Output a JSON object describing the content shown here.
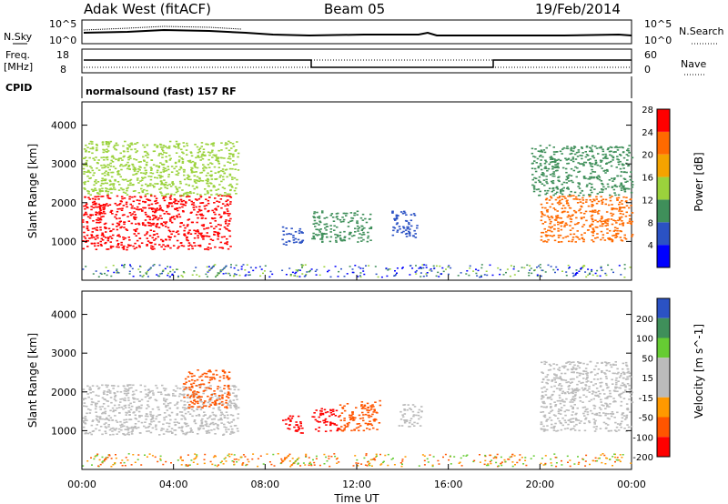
{
  "header": {
    "station": "Adak West (fitACF)",
    "beam": "Beam 05",
    "date": "19/Feb/2014"
  },
  "strip_labels": {
    "nsky": "N.Sky",
    "nsky_top": "10^5",
    "nsky_bottom": "10^0",
    "nsearch": "N.Search",
    "nsearch_top": "10^5",
    "nsearch_bottom": "10^0",
    "freq": "Freq.",
    "freq_unit": "[MHz]",
    "freq_top": "18",
    "freq_bottom": "8",
    "nave": "Nave",
    "nave_top": "60",
    "nave_bottom": "0",
    "cpid": "CPID",
    "cpid_text": "normalsound (fast) 157 RF"
  },
  "time_axis": {
    "label": "Time UT",
    "ticks": [
      "00:00",
      "04:00",
      "08:00",
      "12:00",
      "16:00",
      "20:00",
      "00:00"
    ]
  },
  "chart_data": [
    {
      "type": "heatmap",
      "panel": "power",
      "ylabel": "Slant Range [km]",
      "ylim": [
        0,
        4600
      ],
      "yticks": [
        1000,
        2000,
        3000,
        4000
      ],
      "xlim_hours": [
        0,
        24
      ],
      "colorbar": {
        "label": "Power [dB]",
        "ticks": [
          "4",
          "8",
          "12",
          "16",
          "20",
          "24",
          "28"
        ],
        "colors": [
          "#0000ff",
          "#2b52c4",
          "#3f8f5a",
          "#9bd23c",
          "#f4a300",
          "#ff6a00",
          "#ff0000"
        ]
      },
      "regions": [
        {
          "t0": 0.0,
          "t1": 6.5,
          "r0": 800,
          "r1": 2200,
          "value": 28
        },
        {
          "t0": 0.0,
          "t1": 6.8,
          "r0": 2200,
          "r1": 3600,
          "value": 16
        },
        {
          "t0": 8.7,
          "t1": 9.6,
          "r0": 900,
          "r1": 1400,
          "value": 8
        },
        {
          "t0": 10.0,
          "t1": 12.6,
          "r0": 1000,
          "r1": 1800,
          "value": 10
        },
        {
          "t0": 13.5,
          "t1": 14.6,
          "r0": 1100,
          "r1": 1800,
          "value": 6
        },
        {
          "t0": 20.0,
          "t1": 24.0,
          "r0": 1000,
          "r1": 2200,
          "value": 24
        },
        {
          "t0": 19.6,
          "t1": 24.0,
          "r0": 2200,
          "r1": 3500,
          "value": 12
        }
      ]
    },
    {
      "type": "heatmap",
      "panel": "velocity",
      "ylabel": "Slant Range [km]",
      "ylim": [
        0,
        4600
      ],
      "yticks": [
        1000,
        2000,
        3000,
        4000
      ],
      "xlim_hours": [
        0,
        24
      ],
      "colorbar": {
        "label": "Velocity [m s^-1]",
        "ticks": [
          "200",
          "100",
          "50",
          "15",
          "-15",
          "-50",
          "-100",
          "-200"
        ],
        "colors": [
          "#2b52c4",
          "#3f8f5a",
          "#66cc33",
          "#bbbbbb",
          "#bbbbbb",
          "#ff9900",
          "#ff5500",
          "#ff0000"
        ]
      },
      "regions": [
        {
          "t0": 0.0,
          "t1": 6.8,
          "r0": 900,
          "r1": 2200,
          "value": 0
        },
        {
          "t0": 4.4,
          "t1": 6.4,
          "r0": 1600,
          "r1": 2600,
          "value": -60
        },
        {
          "t0": 8.7,
          "t1": 9.6,
          "r0": 900,
          "r1": 1400,
          "value": -200
        },
        {
          "t0": 10.0,
          "t1": 11.2,
          "r0": 1000,
          "r1": 1600,
          "value": -200
        },
        {
          "t0": 11.2,
          "t1": 13.0,
          "r0": 1000,
          "r1": 1800,
          "value": -60
        },
        {
          "t0": 13.8,
          "t1": 14.8,
          "r0": 1100,
          "r1": 1700,
          "value": 0
        },
        {
          "t0": 20.0,
          "t1": 24.0,
          "r0": 1000,
          "r1": 2800,
          "value": 0
        }
      ]
    }
  ]
}
